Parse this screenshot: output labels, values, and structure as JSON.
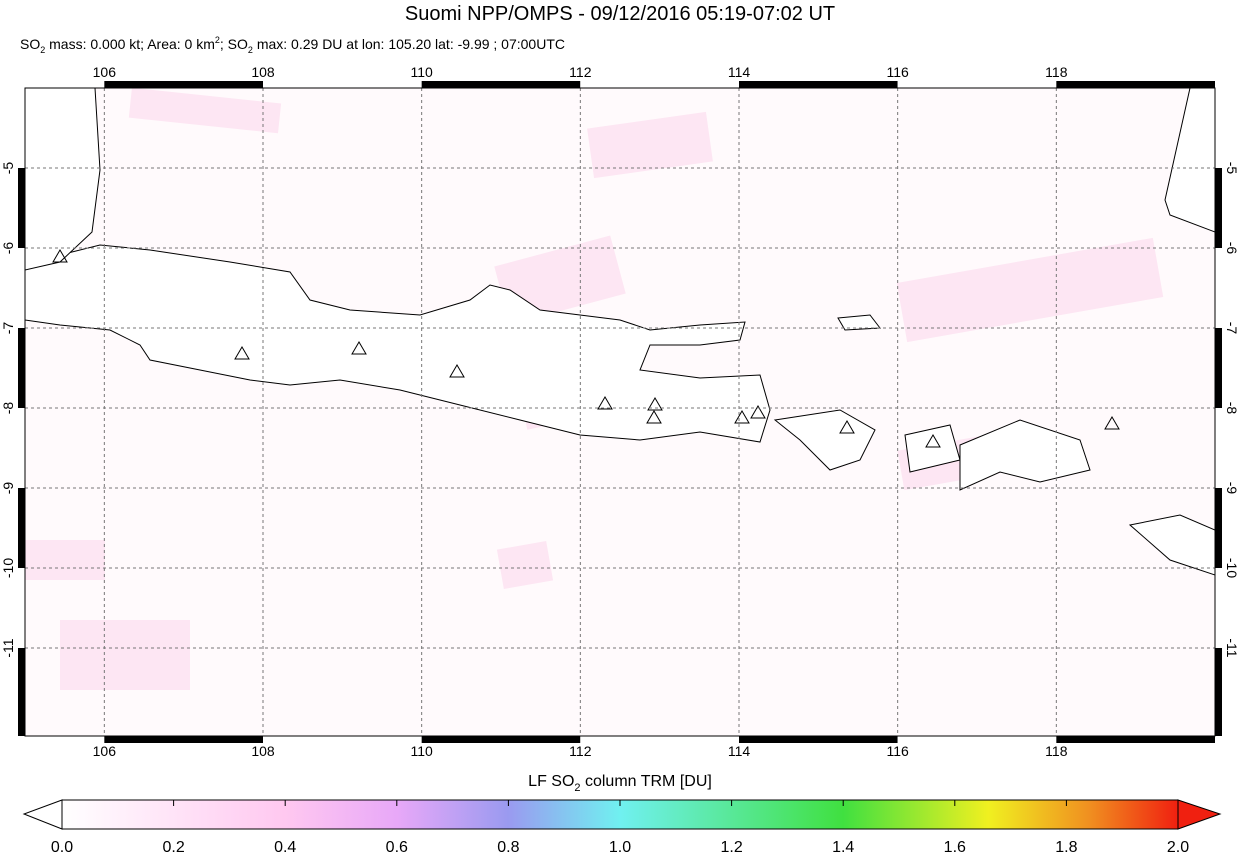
{
  "title": "Suomi NPP/OMPS - 09/12/2016 05:19-07:02 UT",
  "subtitle": [
    "SO",
    "2",
    " mass: 0.000 kt; Area: 0 km",
    "2",
    "; SO",
    "2",
    " max: 0.29 DU at lon: 105.20 lat: -9.99 ; 07:00UTC"
  ],
  "map": {
    "lon_range": [
      105,
      120
    ],
    "lat_range": [
      -4,
      -12.1
    ],
    "lon_ticks": [
      106,
      108,
      110,
      112,
      114,
      116,
      118
    ],
    "lat_ticks": [
      -5,
      -6,
      -7,
      -8,
      -9,
      -10,
      -11
    ]
  },
  "colorbar": {
    "label": [
      "LF SO",
      "2",
      " column TRM [DU]"
    ],
    "range": [
      0,
      2
    ],
    "ticks": [
      {
        "value": 0,
        "label": "0.0"
      },
      {
        "value": 0.2,
        "label": "0.2"
      },
      {
        "value": 0.4,
        "label": "0.4"
      },
      {
        "value": 0.6,
        "label": "0.6"
      },
      {
        "value": 0.8,
        "label": "0.8"
      },
      {
        "value": 1,
        "label": "1.0"
      },
      {
        "value": 1.2,
        "label": "1.2"
      },
      {
        "value": 1.4,
        "label": "1.4"
      },
      {
        "value": 1.6,
        "label": "1.6"
      },
      {
        "value": 1.8,
        "label": "1.8"
      },
      {
        "value": 2,
        "label": "2.0"
      }
    ]
  }
}
